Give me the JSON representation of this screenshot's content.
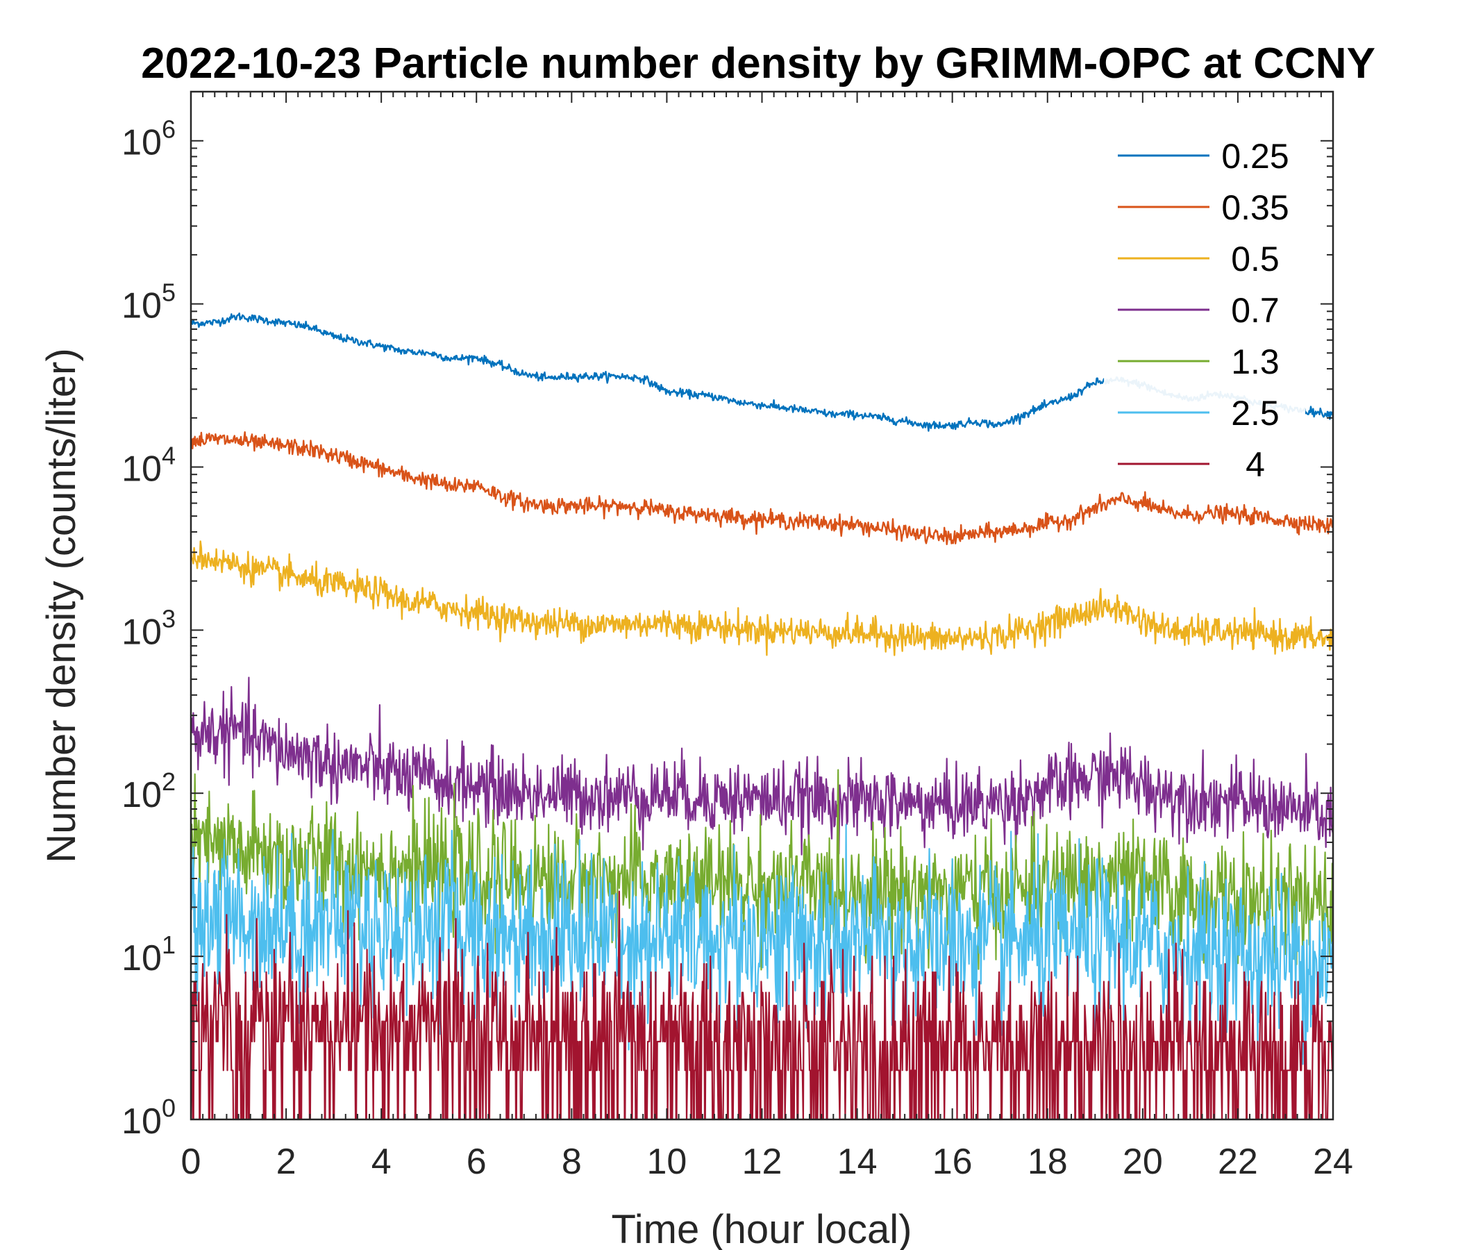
{
  "chart_data": {
    "type": "line",
    "title": "2022-10-23 Particle number density by GRIMM-OPC at CCNY",
    "xlabel": "Time (hour local)",
    "ylabel": "Number density (counts/liter)",
    "xlim": [
      0,
      24
    ],
    "ylim": [
      1,
      2000000
    ],
    "yscale": "log",
    "x_ticks": [
      0,
      2,
      4,
      6,
      8,
      10,
      12,
      14,
      16,
      18,
      20,
      22,
      24
    ],
    "x_tick_labels": [
      "0",
      "2",
      "4",
      "6",
      "8",
      "10",
      "12",
      "14",
      "16",
      "18",
      "20",
      "22",
      "24"
    ],
    "y_ticks": [
      1,
      10,
      100,
      1000,
      10000,
      100000,
      1000000
    ],
    "y_tick_labels": [
      {
        "base": "10",
        "exp": "0"
      },
      {
        "base": "10",
        "exp": "1"
      },
      {
        "base": "10",
        "exp": "2"
      },
      {
        "base": "10",
        "exp": "3"
      },
      {
        "base": "10",
        "exp": "4"
      },
      {
        "base": "10",
        "exp": "5"
      },
      {
        "base": "10",
        "exp": "6"
      }
    ],
    "grid": false,
    "legend_position": "top-right",
    "x": [
      0,
      0.5,
      1,
      1.5,
      2,
      2.5,
      3,
      3.5,
      4,
      4.5,
      5,
      5.5,
      6,
      6.5,
      7,
      7.5,
      8,
      8.5,
      9,
      9.5,
      10,
      10.5,
      11,
      11.5,
      12,
      12.5,
      13,
      13.5,
      14,
      14.5,
      15,
      15.5,
      16,
      16.5,
      17,
      17.5,
      18,
      18.5,
      19,
      19.5,
      20,
      20.5,
      21,
      21.5,
      22,
      22.5,
      23,
      23.5,
      24
    ],
    "series": [
      {
        "name": "0.25",
        "color": "#0072BD",
        "values": [
          76000,
          77000,
          84000,
          80000,
          76000,
          72000,
          63000,
          59000,
          55000,
          51000,
          50000,
          46000,
          47000,
          42000,
          37000,
          35000,
          36000,
          36000,
          36000,
          35000,
          29000,
          28000,
          27000,
          25000,
          24000,
          23000,
          22000,
          21000,
          21000,
          20000,
          19000,
          18000,
          18000,
          19000,
          18000,
          21000,
          24000,
          27000,
          33000,
          34000,
          32000,
          28000,
          26000,
          28000,
          27000,
          24000,
          23000,
          22000,
          21000
        ]
      },
      {
        "name": "0.35",
        "color": "#D95319",
        "values": [
          14500,
          14800,
          14500,
          13800,
          13500,
          12800,
          11800,
          10800,
          9800,
          8800,
          8300,
          7500,
          7800,
          6700,
          6000,
          5800,
          5800,
          5700,
          5800,
          5700,
          5300,
          5200,
          5100,
          4900,
          4800,
          4700,
          4600,
          4500,
          4400,
          4200,
          4000,
          3800,
          3700,
          3900,
          4000,
          4200,
          4500,
          4800,
          5600,
          6300,
          6000,
          5300,
          5100,
          5200,
          5100,
          4900,
          4700,
          4500,
          4300
        ]
      },
      {
        "name": "0.5",
        "color": "#EDB120",
        "values": [
          2900,
          2700,
          2500,
          2300,
          2200,
          2000,
          1900,
          1800,
          1700,
          1500,
          1450,
          1350,
          1300,
          1200,
          1150,
          1100,
          1100,
          1080,
          1080,
          1100,
          1100,
          1080,
          1050,
          1020,
          1000,
          990,
          980,
          970,
          960,
          940,
          920,
          890,
          880,
          900,
          920,
          1000,
          1100,
          1200,
          1350,
          1350,
          1150,
          1000,
          970,
          980,
          960,
          940,
          920,
          900,
          880
        ]
      },
      {
        "name": "0.7",
        "color": "#7E2F8E",
        "values": [
          230,
          235,
          240,
          200,
          180,
          170,
          150,
          145,
          140,
          125,
          120,
          115,
          112,
          105,
          100,
          100,
          98,
          98,
          97,
          98,
          100,
          97,
          95,
          93,
          92,
          92,
          90,
          90,
          88,
          88,
          87,
          85,
          85,
          86,
          87,
          95,
          105,
          115,
          125,
          130,
          110,
          100,
          95,
          90,
          88,
          85,
          80,
          75,
          72
        ]
      },
      {
        "name": "1.3",
        "color": "#77AC30",
        "values": [
          48,
          46,
          44,
          42,
          40,
          39,
          38,
          37,
          36,
          35,
          34,
          33,
          32,
          31,
          30,
          30,
          30,
          29,
          29,
          29,
          29,
          28,
          28,
          28,
          27,
          27,
          27,
          26,
          26,
          26,
          25,
          25,
          25,
          25,
          25,
          26,
          27,
          28,
          30,
          30,
          27,
          25,
          24,
          23,
          22,
          22,
          21,
          20,
          19
        ]
      },
      {
        "name": "2.5",
        "color": "#4DBEEE",
        "values": [
          18,
          18,
          17,
          17,
          16,
          16,
          16,
          16,
          15,
          15,
          15,
          15,
          15,
          14,
          14,
          14,
          14,
          14,
          14,
          13,
          13,
          13,
          13,
          13,
          13,
          13,
          12,
          12,
          12,
          12,
          12,
          12,
          12,
          12,
          12,
          12,
          12,
          12,
          13,
          13,
          12,
          11,
          11,
          11,
          10,
          10,
          10,
          9,
          9
        ]
      },
      {
        "name": "4",
        "color": "#A2142F",
        "values": [
          4.5,
          4.5,
          4.5,
          4.5,
          4.3,
          4.3,
          4.2,
          4.2,
          4.0,
          4.0,
          4.0,
          3.9,
          3.8,
          3.8,
          3.7,
          3.6,
          3.6,
          3.5,
          3.5,
          3.5,
          3.4,
          3.4,
          3.3,
          3.3,
          3.2,
          3.2,
          3.1,
          3.1,
          3.0,
          3.0,
          3.0,
          3.0,
          3.0,
          3.0,
          3.0,
          3.0,
          3.0,
          3.0,
          3.0,
          3.0,
          3.0,
          2.9,
          2.9,
          2.8,
          2.8,
          2.7,
          2.7,
          2.6,
          2.6
        ]
      }
    ]
  }
}
